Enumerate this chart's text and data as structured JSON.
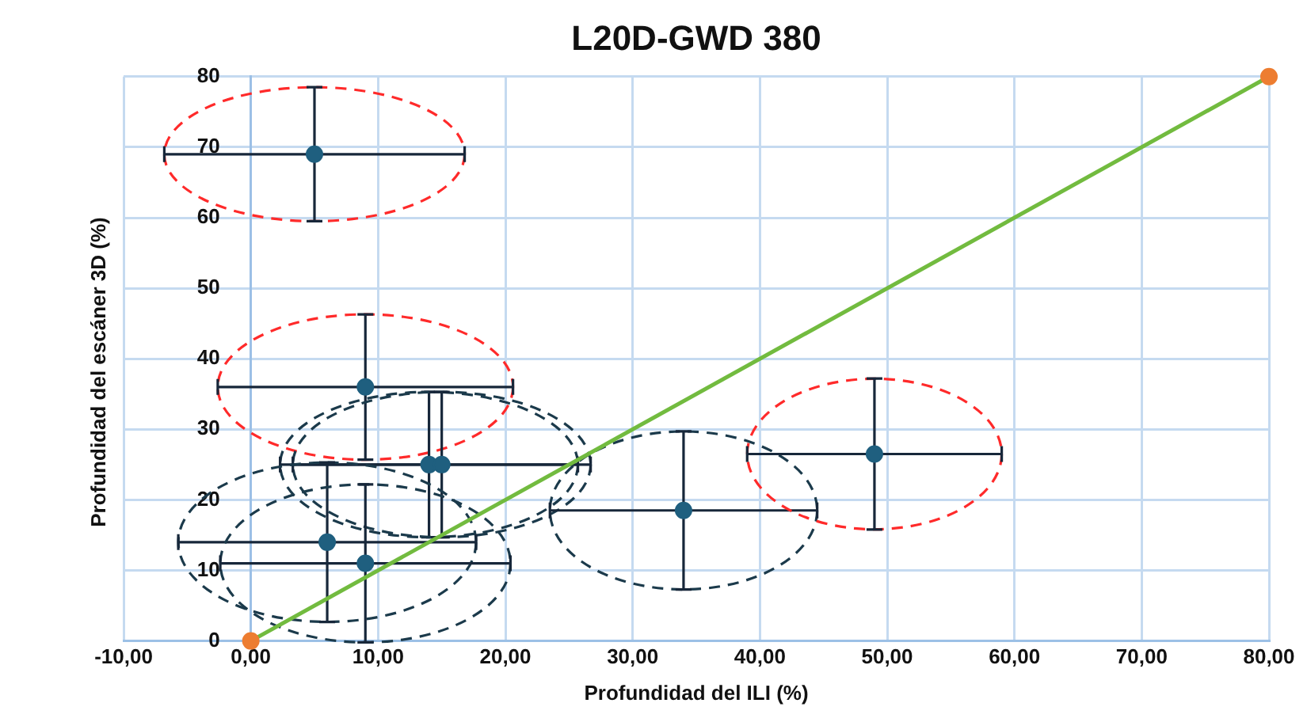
{
  "chart_data": {
    "type": "scatter",
    "title": "L20D-GWD 380",
    "xlabel": "Profundidad del ILI (%)",
    "ylabel": "Profundidad del escáner 3D (%)",
    "xlim": [
      -10,
      80
    ],
    "ylim": [
      0,
      80
    ],
    "xticks": [
      {
        "value": -10,
        "label": "-10,00"
      },
      {
        "value": 0,
        "label": "0,00"
      },
      {
        "value": 10,
        "label": "10,00"
      },
      {
        "value": 20,
        "label": "20,00"
      },
      {
        "value": 30,
        "label": "30,00"
      },
      {
        "value": 40,
        "label": "40,00"
      },
      {
        "value": 50,
        "label": "50,00"
      },
      {
        "value": 60,
        "label": "60,00"
      },
      {
        "value": 70,
        "label": "70,00"
      },
      {
        "value": 80,
        "label": "80,00"
      }
    ],
    "yticks": [
      0,
      10,
      20,
      30,
      40,
      50,
      60,
      70,
      80
    ],
    "grid": true,
    "legend": false,
    "marker": "circle",
    "series": [
      {
        "type": "scatter",
        "color": "#1f5f7f",
        "x": [
          5,
          9,
          14,
          15,
          6,
          9,
          34,
          49
        ],
        "values": [
          69,
          36,
          25,
          25,
          14,
          11,
          18.5,
          26.5
        ],
        "xerrors": [
          11.8,
          11.6,
          11.7,
          11.7,
          11.7,
          11.4,
          10.5,
          10
        ],
        "errors": [
          9.5,
          10.3,
          10.3,
          10.3,
          11.3,
          11.2,
          11.2,
          10.7
        ]
      },
      {
        "type": "line",
        "color": "#72bb3f",
        "x": [
          0,
          80
        ],
        "values": [
          0,
          80
        ],
        "marker": "none"
      },
      {
        "type": "scatter",
        "color": "#ed7d31",
        "x": [
          0,
          80
        ],
        "values": [
          0,
          80
        ]
      }
    ]
  }
}
